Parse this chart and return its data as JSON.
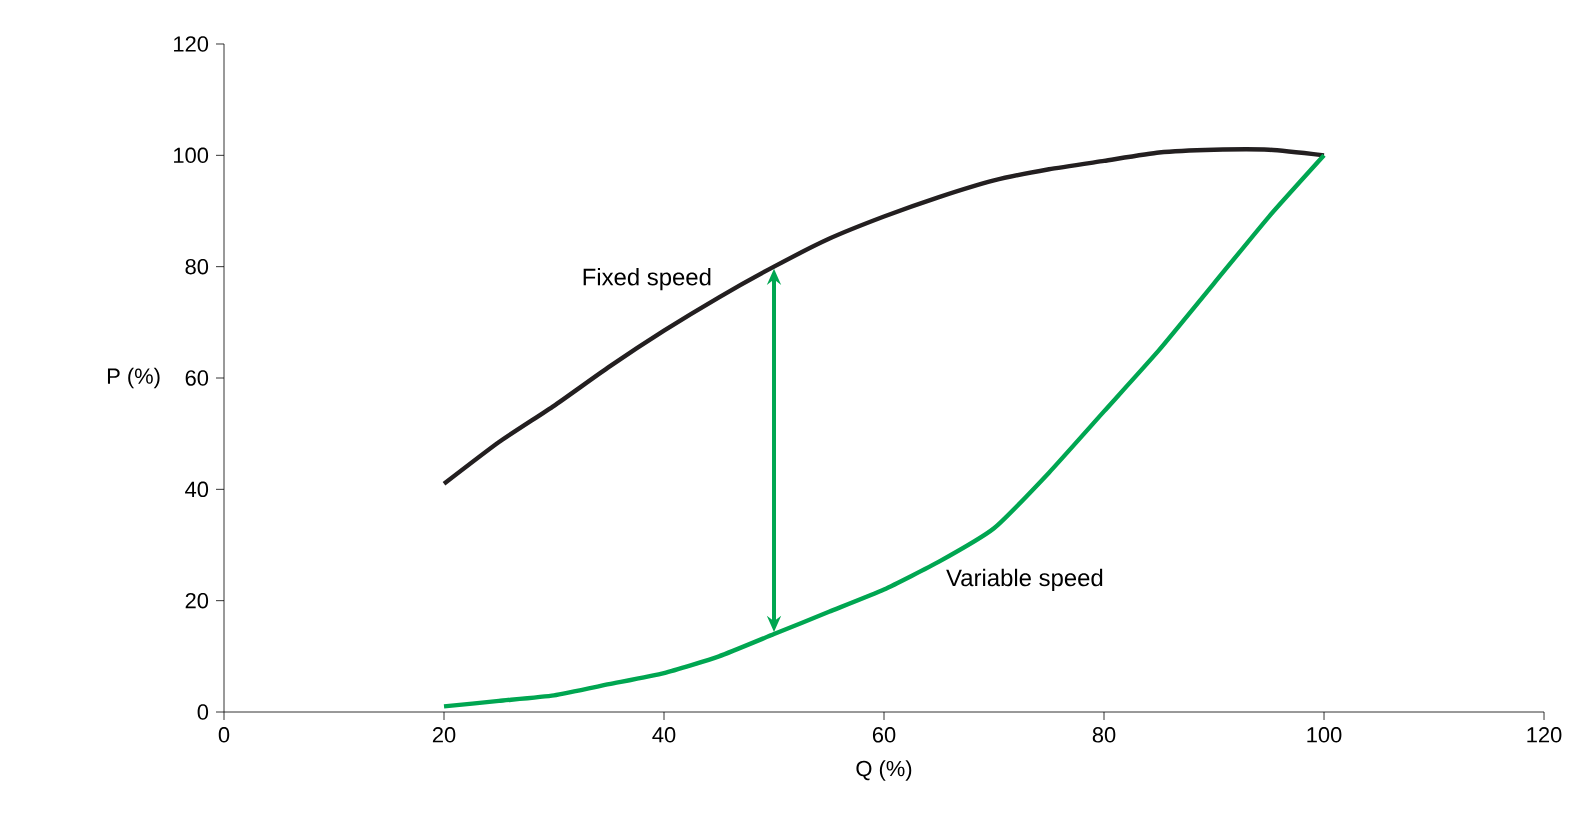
{
  "chart_data": {
    "type": "line",
    "xlabel": "Q (%)",
    "ylabel": "P (%)",
    "xlim": [
      0,
      120
    ],
    "ylim": [
      0,
      120
    ],
    "xticks": [
      0,
      20,
      40,
      60,
      80,
      100,
      120
    ],
    "yticks": [
      0,
      20,
      40,
      60,
      80,
      100,
      120
    ],
    "grid": false,
    "legend": false,
    "marker": "none",
    "line_style": "solid",
    "series": [
      {
        "name": "Fixed speed",
        "color": "#231f20",
        "x": [
          20,
          25,
          30,
          35,
          40,
          45,
          50,
          55,
          60,
          65,
          70,
          75,
          80,
          85,
          90,
          95,
          100
        ],
        "values": [
          41,
          48.5,
          55,
          62,
          68.5,
          74.5,
          80,
          85,
          89,
          92.5,
          95.5,
          97.5,
          99,
          100.5,
          101,
          101,
          100
        ]
      },
      {
        "name": "Variable speed",
        "color": "#00a651",
        "x": [
          20,
          25,
          30,
          35,
          40,
          45,
          50,
          55,
          60,
          65,
          70,
          75,
          80,
          85,
          90,
          95,
          100
        ],
        "values": [
          1,
          2,
          3,
          5,
          7,
          10,
          14,
          18,
          22,
          27,
          33,
          43,
          54,
          65,
          77,
          89,
          100
        ]
      }
    ]
  }
}
